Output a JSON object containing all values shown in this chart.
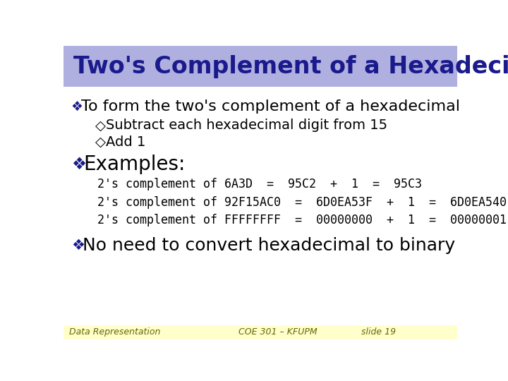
{
  "title": "Two's Complement of a Hexadecimal",
  "title_bg": "#b0b0e0",
  "title_color": "#1a1a8c",
  "bg_color": "#ffffff",
  "footer_bg": "#ffffcc",
  "footer_left": "Data Representation",
  "footer_center": "COE 301 – KFUPM",
  "footer_right": "slide 19",
  "bullet1": "To form the two's complement of a hexadecimal",
  "sub1": "Subtract each hexadecimal digit from 15",
  "sub2": "Add 1",
  "bullet2": "Examples:",
  "ex1": "2's complement of 6A3D  =  95C2  +  1  =  95C3",
  "ex2": "2's complement of 92F15AC0  =  6D0EA53F  +  1  =  6D0EA540",
  "ex3": "2's complement of FFFFFFFF  =  00000000  +  1  =  00000001",
  "bullet3": "No need to convert hexadecimal to binary",
  "body_color": "#000000",
  "bullet_color": "#1a1a8c",
  "title_fontsize": 24,
  "bullet1_fontsize": 16,
  "sub_fontsize": 14,
  "bullet2_fontsize": 20,
  "example_fontsize": 12,
  "bullet3_fontsize": 18,
  "footer_fontsize": 9
}
